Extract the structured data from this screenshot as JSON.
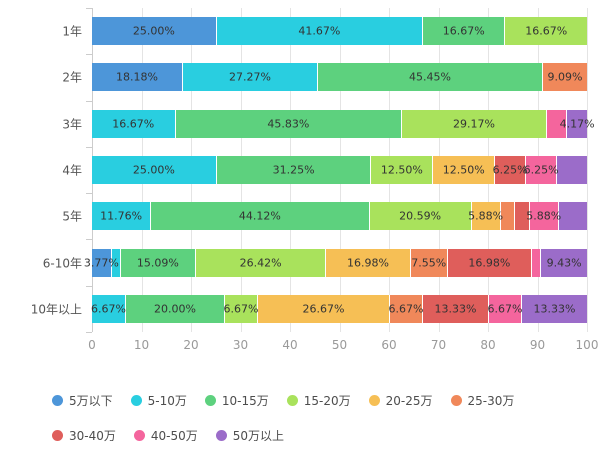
{
  "chart_data": {
    "type": "bar",
    "variant": "horizontal-stacked-percent",
    "title": "",
    "grid": true,
    "legend_position": "bottom",
    "x_axis": {
      "min": 0,
      "max": 100,
      "ticks": [
        0,
        10,
        20,
        30,
        40,
        50,
        60,
        70,
        80,
        90,
        100
      ]
    },
    "categories": [
      "1年",
      "2年",
      "3年",
      "4年",
      "5年",
      "6-10年",
      "10年以上"
    ],
    "series": [
      {
        "name": "5万以下",
        "color": "#4D96D9"
      },
      {
        "name": "5-10万",
        "color": "#29CEE0"
      },
      {
        "name": "10-15万",
        "color": "#5DD17E"
      },
      {
        "name": "15-20万",
        "color": "#A9E25C"
      },
      {
        "name": "20-25万",
        "color": "#F6BF55"
      },
      {
        "name": "25-30万",
        "color": "#F0885A"
      },
      {
        "name": "30-40万",
        "color": "#DF5E5B"
      },
      {
        "name": "40-50万",
        "color": "#F4659D"
      },
      {
        "name": "50万以上",
        "color": "#9B6CC9"
      }
    ],
    "rows": [
      {
        "category": "1年",
        "segments": [
          {
            "series": "5万以下",
            "value": 25.0,
            "label": "25.00%"
          },
          {
            "series": "5-10万",
            "value": 41.67,
            "label": "41.67%"
          },
          {
            "series": "10-15万",
            "value": 16.67,
            "label": "16.67%"
          },
          {
            "series": "15-20万",
            "value": 16.67,
            "label": "16.67%"
          }
        ]
      },
      {
        "category": "2年",
        "segments": [
          {
            "series": "5万以下",
            "value": 18.18,
            "label": "18.18%"
          },
          {
            "series": "5-10万",
            "value": 27.27,
            "label": "27.27%"
          },
          {
            "series": "10-15万",
            "value": 45.45,
            "label": "45.45%"
          },
          {
            "series": "25-30万",
            "value": 9.09,
            "label": "9.09%"
          }
        ]
      },
      {
        "category": "3年",
        "segments": [
          {
            "series": "5-10万",
            "value": 16.67,
            "label": "16.67%"
          },
          {
            "series": "10-15万",
            "value": 45.83,
            "label": "45.83%"
          },
          {
            "series": "15-20万",
            "value": 29.17,
            "label": "29.17%"
          },
          {
            "series": "40-50万",
            "value": 4.17,
            "label": ""
          },
          {
            "series": "50万以上",
            "value": 4.17,
            "label": "4.17%"
          }
        ]
      },
      {
        "category": "4年",
        "segments": [
          {
            "series": "5-10万",
            "value": 25.0,
            "label": "25.00%"
          },
          {
            "series": "10-15万",
            "value": 31.25,
            "label": "31.25%"
          },
          {
            "series": "15-20万",
            "value": 12.5,
            "label": "12.50%"
          },
          {
            "series": "20-25万",
            "value": 12.5,
            "label": "12.50%"
          },
          {
            "series": "30-40万",
            "value": 6.25,
            "label": "6.25%"
          },
          {
            "series": "40-50万",
            "value": 6.25,
            "label": "6.25%"
          },
          {
            "series": "50万以上",
            "value": 6.25,
            "label": ""
          }
        ]
      },
      {
        "category": "5年",
        "segments": [
          {
            "series": "5-10万",
            "value": 11.76,
            "label": "11.76%"
          },
          {
            "series": "10-15万",
            "value": 44.12,
            "label": "44.12%"
          },
          {
            "series": "15-20万",
            "value": 20.59,
            "label": "20.59%"
          },
          {
            "series": "20-25万",
            "value": 5.88,
            "label": "5.88%"
          },
          {
            "series": "25-30万",
            "value": 2.94,
            "label": ""
          },
          {
            "series": "30-40万",
            "value": 2.94,
            "label": ""
          },
          {
            "series": "40-50万",
            "value": 5.88,
            "label": "5.88%"
          },
          {
            "series": "50万以上",
            "value": 5.88,
            "label": ""
          }
        ]
      },
      {
        "category": "6-10年",
        "segments": [
          {
            "series": "5万以下",
            "value": 3.77,
            "label": "3.77%"
          },
          {
            "series": "5-10万",
            "value": 1.89,
            "label": ""
          },
          {
            "series": "10-15万",
            "value": 15.09,
            "label": "15.09%"
          },
          {
            "series": "15-20万",
            "value": 26.42,
            "label": "26.42%"
          },
          {
            "series": "20-25万",
            "value": 16.98,
            "label": "16.98%"
          },
          {
            "series": "25-30万",
            "value": 7.55,
            "label": "7.55%"
          },
          {
            "series": "30-40万",
            "value": 16.98,
            "label": "16.98%"
          },
          {
            "series": "40-50万",
            "value": 1.89,
            "label": ""
          },
          {
            "series": "50万以上",
            "value": 9.43,
            "label": "9.43%"
          }
        ]
      },
      {
        "category": "10年以上",
        "segments": [
          {
            "series": "5-10万",
            "value": 6.67,
            "label": "6.67%"
          },
          {
            "series": "10-15万",
            "value": 20.0,
            "label": "20.00%"
          },
          {
            "series": "15-20万",
            "value": 6.67,
            "label": "6.67%"
          },
          {
            "series": "20-25万",
            "value": 26.67,
            "label": "26.67%"
          },
          {
            "series": "25-30万",
            "value": 6.67,
            "label": "6.67%"
          },
          {
            "series": "30-40万",
            "value": 13.33,
            "label": "13.33%"
          },
          {
            "series": "40-50万",
            "value": 6.67,
            "label": "6.67%"
          },
          {
            "series": "50万以上",
            "value": 13.33,
            "label": "13.33%"
          }
        ]
      },
      {
        "category": "__legend__",
        "segments": []
      }
    ],
    "legend_rows": [
      [
        "5万以下",
        "5-10万",
        "10-15万",
        "15-20万",
        "20-25万",
        "25-30万"
      ],
      [
        "30-40万",
        "40-50万",
        "50万以上"
      ]
    ]
  },
  "colors": {
    "background": "#ffffff",
    "gridline": "#e4e4e4",
    "axis_line": "#cccccc",
    "segment_label": "#333333",
    "category_label": "#555555",
    "tick_label": "#999999",
    "legend_label": "#4d4d4d",
    "segment_divider": "#ffffff"
  }
}
